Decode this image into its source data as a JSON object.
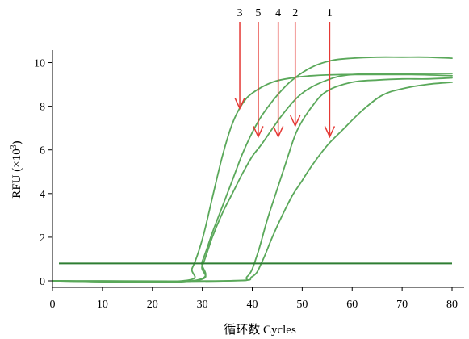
{
  "chart_data": {
    "type": "line",
    "title": "",
    "xlabel": "循环数 Cycles",
    "ylabel_main": "RFU (×10",
    "ylabel_exp": "3",
    "ylabel_close": ")",
    "xlim": [
      0,
      80
    ],
    "ylim": [
      0,
      10.5
    ],
    "xticks": [
      0,
      10,
      20,
      30,
      40,
      50,
      60,
      70,
      80
    ],
    "yticks": [
      0,
      2,
      4,
      6,
      8,
      10
    ],
    "grid": false,
    "legend": "none",
    "line_color": "#5aa85a",
    "threshold": {
      "y": 0.8,
      "color": "#2e7d32"
    },
    "arrow_color": "#e53935",
    "series": [
      {
        "label": "1",
        "x": [
          0,
          35,
          40,
          42,
          44,
          46,
          48,
          50,
          52,
          55,
          58,
          62,
          66,
          70,
          75,
          80
        ],
        "y": [
          0,
          0,
          0.2,
          0.9,
          2.0,
          3.0,
          3.9,
          4.6,
          5.3,
          6.2,
          6.9,
          7.8,
          8.5,
          8.8,
          9.0,
          9.1
        ]
      },
      {
        "label": "2",
        "x": [
          0,
          35,
          39,
          41,
          43,
          45,
          47,
          49,
          52,
          55,
          60,
          65,
          70,
          75,
          80
        ],
        "y": [
          0,
          0,
          0.2,
          1.2,
          2.8,
          4.2,
          5.6,
          6.9,
          8.0,
          8.7,
          9.1,
          9.2,
          9.25,
          9.25,
          9.3
        ]
      },
      {
        "label": "3",
        "x": [
          0,
          26,
          28,
          30,
          32,
          34,
          36,
          38,
          40,
          44,
          48,
          52,
          58,
          65,
          72,
          80
        ],
        "y": [
          0,
          0,
          0.6,
          1.9,
          3.8,
          5.7,
          7.2,
          8.1,
          8.6,
          9.1,
          9.3,
          9.4,
          9.45,
          9.45,
          9.45,
          9.4
        ]
      },
      {
        "label": "4",
        "x": [
          0,
          28,
          30,
          32,
          34,
          36,
          38,
          40,
          42,
          46,
          50,
          55,
          60,
          70,
          80
        ],
        "y": [
          0,
          0,
          0.7,
          2.0,
          3.1,
          4.0,
          4.9,
          5.7,
          6.3,
          7.6,
          8.6,
          9.2,
          9.45,
          9.5,
          9.5
        ]
      },
      {
        "label": "5",
        "x": [
          0,
          28,
          30,
          32,
          34,
          36,
          38,
          40,
          42,
          45,
          48,
          52,
          56,
          60,
          65,
          70,
          75,
          80
        ],
        "y": [
          0,
          0,
          0.9,
          2.2,
          3.4,
          4.6,
          5.8,
          6.8,
          7.6,
          8.5,
          9.2,
          9.8,
          10.1,
          10.2,
          10.25,
          10.25,
          10.25,
          10.2
        ]
      }
    ],
    "annotations": [
      {
        "label": "3",
        "x": 37.5,
        "y": 7.9
      },
      {
        "label": "5",
        "x": 41.2,
        "y": 6.6
      },
      {
        "label": "4",
        "x": 45.2,
        "y": 6.6
      },
      {
        "label": "2",
        "x": 48.6,
        "y": 7.1
      },
      {
        "label": "1",
        "x": 55.5,
        "y": 6.6
      }
    ]
  }
}
